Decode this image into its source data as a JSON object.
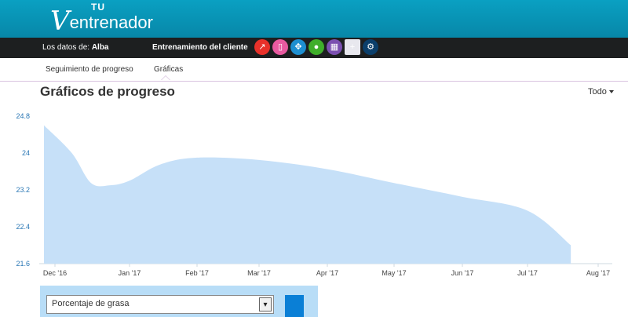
{
  "app": {
    "logo_v": "V",
    "logo_tu": "TU",
    "logo_rest": "entrenador"
  },
  "client_bar": {
    "label": "Los datos de:",
    "client": "Alba",
    "title": "Entrenamiento del cliente",
    "icons": [
      {
        "name": "progress-chart-icon",
        "glyph": "↗",
        "color": "#e8312a"
      },
      {
        "name": "clipboard-icon",
        "glyph": "▯",
        "color": "#e85aa0"
      },
      {
        "name": "target-icon",
        "glyph": "✥",
        "color": "#1e8fd0"
      },
      {
        "name": "apple-icon",
        "glyph": "●",
        "color": "#3fae2a"
      },
      {
        "name": "calendar-icon",
        "glyph": "▦",
        "color": "#7b4fb0"
      },
      {
        "name": "plus-icon",
        "glyph": "+",
        "color": "#e8e8ee"
      },
      {
        "name": "gear-icon",
        "glyph": "⚙",
        "color": "#0b3f6b"
      }
    ]
  },
  "subnav": {
    "tab_tracking": "Seguimiento de progreso",
    "tab_charts": "Gráficas"
  },
  "page": {
    "title": "Gráficos de progreso",
    "range": "Todo"
  },
  "controls": {
    "metric_selected": "Porcentaje de grasa"
  },
  "chart_data": {
    "type": "area",
    "x_ticks": [
      "Dec '16",
      "Jan '17",
      "Feb '17",
      "Mar '17",
      "Apr '17",
      "May '17",
      "Jun '17",
      "Jul '17",
      "Aug '17"
    ],
    "y_ticks": [
      "24.8",
      "24",
      "23.2",
      "22.4",
      "21.6"
    ],
    "ylim": [
      21.6,
      24.8
    ],
    "x": [
      "2016-12-01",
      "2016-12-08",
      "2016-12-16",
      "2016-12-24",
      "2017-01-01",
      "2017-01-15",
      "2017-02-01",
      "2017-03-01",
      "2017-04-01",
      "2017-05-01",
      "2017-06-01",
      "2017-07-01",
      "2017-07-20"
    ],
    "values": [
      24.6,
      24.0,
      23.35,
      23.3,
      23.4,
      23.75,
      23.9,
      23.85,
      23.65,
      23.35,
      23.05,
      22.75,
      22.0
    ],
    "color": "#c6e0f8",
    "grid": false
  }
}
